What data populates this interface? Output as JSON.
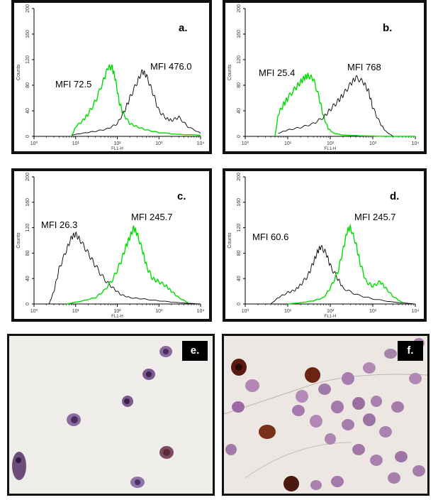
{
  "chart_data": [
    {
      "type": "line",
      "panel_label": "a.",
      "xlabel": "FL1-H",
      "ylabel": "Counts",
      "x_scale": "log",
      "xlim": [
        1,
        10000
      ],
      "ylim": [
        0,
        200
      ],
      "x_ticks": [
        "10⁰",
        "10¹",
        "10²",
        "10³",
        "10⁴"
      ],
      "y_ticks": [
        "0",
        "40",
        "80",
        "120",
        "160",
        "200"
      ],
      "annotations": [
        {
          "text": "MFI  72.5"
        },
        {
          "text": "MFI  476.0"
        }
      ],
      "series": [
        {
          "color": "#00dd00",
          "x": [
            8,
            10,
            15,
            20,
            30,
            45,
            60,
            75,
            90,
            110,
            140,
            200,
            300,
            500,
            1000,
            3000,
            10000
          ],
          "y": [
            0,
            15,
            25,
            35,
            55,
            85,
            108,
            108,
            90,
            55,
            35,
            20,
            15,
            10,
            6,
            3,
            2
          ]
        },
        {
          "color": "#000000",
          "x": [
            8,
            15,
            30,
            60,
            100,
            150,
            200,
            300,
            400,
            500,
            700,
            1000,
            1500,
            2000,
            3000,
            5000,
            10000
          ],
          "y": [
            2,
            5,
            8,
            12,
            20,
            40,
            60,
            85,
            102,
            95,
            70,
            40,
            28,
            25,
            30,
            15,
            5
          ]
        }
      ]
    },
    {
      "type": "line",
      "panel_label": "b.",
      "xlabel": "FL1-H",
      "ylabel": "Counts",
      "x_scale": "log",
      "xlim": [
        1,
        10000
      ],
      "ylim": [
        0,
        200
      ],
      "x_ticks": [
        "10⁰",
        "10¹",
        "10²",
        "10³",
        "10⁴"
      ],
      "y_ticks": [
        "0",
        "40",
        "80",
        "120",
        "160",
        "200"
      ],
      "annotations": [
        {
          "text": "MFI  25.4"
        },
        {
          "text": "MFI  768"
        }
      ],
      "series": [
        {
          "color": "#00dd00",
          "x": [
            5,
            6,
            8,
            10,
            15,
            20,
            25,
            30,
            40,
            55,
            70,
            90,
            120,
            200,
            500,
            2000,
            10000
          ],
          "y": [
            0,
            35,
            50,
            60,
            75,
            85,
            92,
            95,
            90,
            60,
            30,
            12,
            5,
            2,
            1,
            0,
            0
          ]
        },
        {
          "color": "#000000",
          "x": [
            6,
            10,
            20,
            40,
            70,
            100,
            150,
            200,
            300,
            400,
            600,
            800,
            1000,
            1500,
            2000,
            3000
          ],
          "y": [
            5,
            10,
            14,
            20,
            30,
            42,
            55,
            65,
            82,
            92,
            85,
            70,
            45,
            20,
            8,
            0
          ]
        }
      ]
    },
    {
      "type": "line",
      "panel_label": "c.",
      "xlabel": "FL1-H",
      "ylabel": "Counts",
      "x_scale": "log",
      "xlim": [
        1,
        10000
      ],
      "ylim": [
        0,
        200
      ],
      "x_ticks": [
        "10⁰",
        "10¹",
        "10²",
        "10³",
        "10⁴"
      ],
      "y_ticks": [
        "0",
        "40",
        "80",
        "120",
        "160",
        "200"
      ],
      "annotations": [
        {
          "text": "MFI  26.3"
        },
        {
          "text": "MFI  245.7"
        }
      ],
      "series": [
        {
          "color": "#000000",
          "x": [
            2.3,
            3,
            4,
            6,
            8,
            10,
            13,
            20,
            30,
            50,
            80,
            120,
            200,
            400,
            1000,
            3000,
            10000
          ],
          "y": [
            0,
            20,
            55,
            85,
            105,
            110,
            100,
            80,
            60,
            38,
            25,
            15,
            10,
            8,
            5,
            2,
            0
          ]
        },
        {
          "color": "#00dd00",
          "x": [
            6,
            15,
            30,
            50,
            80,
            120,
            160,
            200,
            250,
            300,
            400,
            500,
            700,
            1000,
            1500,
            2000,
            3000,
            5000
          ],
          "y": [
            0,
            5,
            10,
            22,
            40,
            65,
            90,
            105,
            120,
            110,
            85,
            60,
            40,
            35,
            28,
            20,
            10,
            2
          ]
        }
      ]
    },
    {
      "type": "line",
      "panel_label": "d.",
      "xlabel": "FL1-H",
      "ylabel": "Counts",
      "x_scale": "log",
      "xlim": [
        1,
        10000
      ],
      "ylim": [
        0,
        200
      ],
      "x_ticks": [
        "10⁰",
        "10¹",
        "10²",
        "10³",
        "10⁴"
      ],
      "y_ticks": [
        "0",
        "40",
        "80",
        "120",
        "160",
        "200"
      ],
      "annotations": [
        {
          "text": "MFI  60.6"
        },
        {
          "text": "MFI  245.7"
        }
      ],
      "series": [
        {
          "color": "#000000",
          "x": [
            4,
            6,
            10,
            15,
            20,
            30,
            40,
            50,
            60,
            80,
            100,
            150,
            200,
            400,
            1000,
            3000,
            10000
          ],
          "y": [
            0,
            10,
            18,
            22,
            30,
            45,
            65,
            82,
            90,
            80,
            60,
            40,
            25,
            15,
            8,
            3,
            0
          ]
        },
        {
          "color": "#00dd00",
          "x": [
            10,
            20,
            40,
            70,
            100,
            150,
            200,
            250,
            300,
            400,
            500,
            700,
            1000,
            1500,
            2000,
            3000,
            5000
          ],
          "y": [
            0,
            2,
            5,
            10,
            25,
            50,
            85,
            115,
            120,
            95,
            65,
            35,
            28,
            35,
            25,
            12,
            2
          ]
        }
      ]
    }
  ],
  "micrographs": [
    {
      "label": "e."
    },
    {
      "label": "f."
    }
  ]
}
